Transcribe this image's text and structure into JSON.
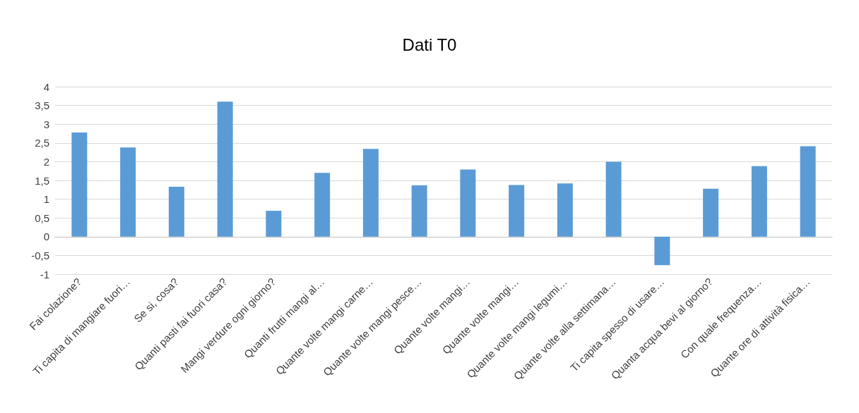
{
  "chart_data": {
    "type": "bar",
    "title": "Dati T0",
    "categories": [
      "Fai colazione?",
      "Ti capita di mangiare fuori…",
      "Se si, cosa?",
      "Quanti pasti fai fuori casa?",
      "Mangi verdure ogni giorno?",
      "Quanti frutti mangi al…",
      "Quante volte mangi carne…",
      "Quante volte mangi pesce…",
      "Quante volte mangi…",
      "Quante volte mangi…",
      "Quante volte mangi legumi…",
      "Quante volte alla settimana…",
      "Ti capita spesso di usare…",
      "Quanta acqua bevi al giorno?",
      "Con quale frequenza…",
      "Quante ore di attività fisica…"
    ],
    "values": [
      2.78,
      2.38,
      1.33,
      3.6,
      0.69,
      1.7,
      2.34,
      1.37,
      1.79,
      1.38,
      1.42,
      2.0,
      -0.76,
      1.28,
      1.88,
      2.41
    ],
    "color": "#5b9bd5",
    "ylim": [
      -1,
      4
    ],
    "yticks": [
      -1,
      {
        "value": -0.5,
        "label": "-0,5"
      },
      0,
      {
        "value": 0.5,
        "label": "0,5"
      },
      1,
      {
        "value": 1.5,
        "label": "1,5"
      },
      2,
      {
        "value": 2.5,
        "label": "2,5"
      },
      3,
      {
        "value": 3.5,
        "label": "3,5"
      },
      4
    ],
    "grid": "y"
  }
}
